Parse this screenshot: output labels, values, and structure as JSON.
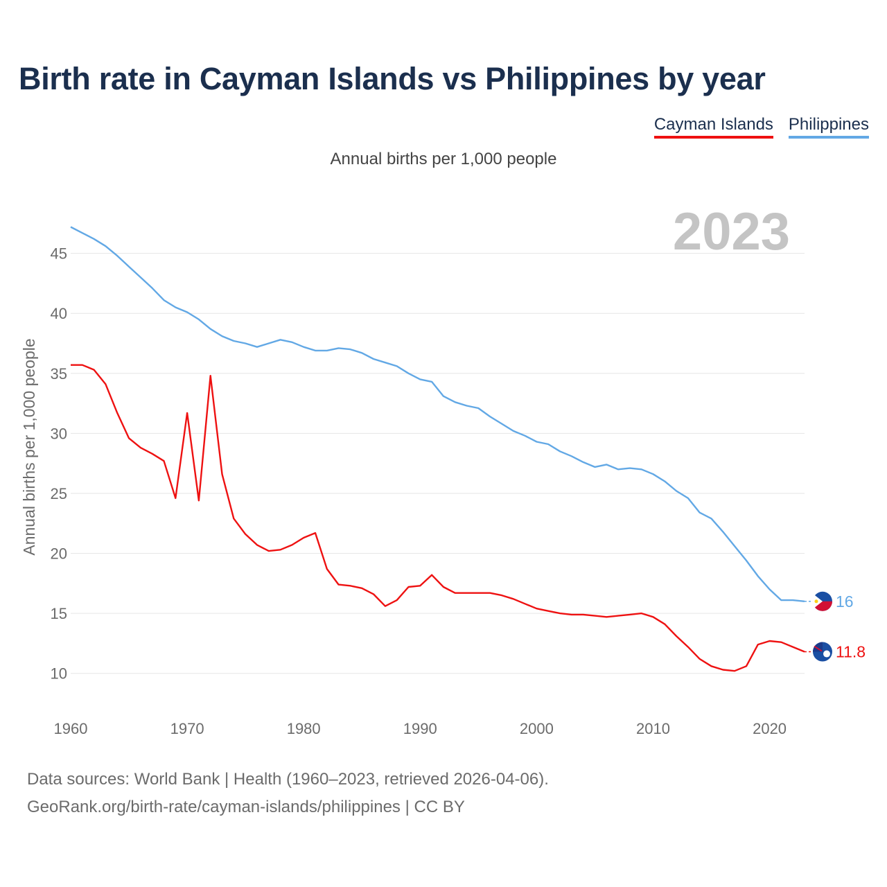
{
  "title": "Birth rate in Cayman Islands vs Philippines by year",
  "subtitle": "Annual births per 1,000 people",
  "legend": [
    {
      "label": "Cayman Islands",
      "color": "#ee1111"
    },
    {
      "label": "Philippines",
      "color": "#62a8e5"
    }
  ],
  "footer": {
    "line1": "Data sources: World Bank | Health (1960–2023, retrieved 2026-04-06).",
    "line2": "GeoRank.org/birth-rate/cayman-islands/philippines | CC BY"
  },
  "chart_data": {
    "type": "line",
    "title": "Birth rate in Cayman Islands vs Philippines by year",
    "xlabel": "",
    "ylabel": "Annual births per 1,000 people",
    "year_label": "2023",
    "xlim": [
      1960,
      2023
    ],
    "ylim": [
      7.5,
      48.5
    ],
    "x_ticks": [
      1960,
      1970,
      1980,
      1990,
      2000,
      2010,
      2020
    ],
    "y_ticks": [
      10,
      15,
      20,
      25,
      30,
      35,
      40,
      45
    ],
    "grid": true,
    "x": [
      1960,
      1961,
      1962,
      1963,
      1964,
      1965,
      1966,
      1967,
      1968,
      1969,
      1970,
      1971,
      1972,
      1973,
      1974,
      1975,
      1976,
      1977,
      1978,
      1979,
      1980,
      1981,
      1982,
      1983,
      1984,
      1985,
      1986,
      1987,
      1988,
      1989,
      1990,
      1991,
      1992,
      1993,
      1994,
      1995,
      1996,
      1997,
      1998,
      1999,
      2000,
      2001,
      2002,
      2003,
      2004,
      2005,
      2006,
      2007,
      2008,
      2009,
      2010,
      2011,
      2012,
      2013,
      2014,
      2015,
      2016,
      2017,
      2018,
      2019,
      2020,
      2021,
      2022,
      2023
    ],
    "series": [
      {
        "name": "Cayman Islands",
        "color": "#ee1111",
        "end_label": "11.8",
        "values": [
          35.7,
          35.7,
          35.3,
          34.1,
          31.7,
          29.6,
          28.8,
          28.3,
          27.7,
          24.6,
          31.7,
          24.4,
          34.8,
          26.6,
          22.9,
          21.6,
          20.7,
          20.2,
          20.3,
          20.7,
          21.3,
          21.7,
          18.7,
          17.4,
          17.3,
          17.1,
          16.6,
          15.6,
          16.1,
          17.2,
          17.3,
          18.2,
          17.2,
          16.7,
          16.7,
          16.7,
          16.7,
          16.5,
          16.2,
          15.8,
          15.4,
          15.2,
          15.0,
          14.9,
          14.9,
          14.8,
          14.7,
          14.8,
          14.9,
          15.0,
          14.7,
          14.1,
          13.1,
          12.2,
          11.2,
          10.6,
          10.3,
          10.2,
          10.6,
          12.4,
          12.7,
          12.6,
          12.2,
          11.8
        ]
      },
      {
        "name": "Philippines",
        "color": "#62a8e5",
        "end_label": "16",
        "values": [
          47.2,
          46.7,
          46.2,
          45.6,
          44.8,
          43.9,
          43.0,
          42.1,
          41.1,
          40.5,
          40.1,
          39.5,
          38.7,
          38.1,
          37.7,
          37.5,
          37.2,
          37.5,
          37.8,
          37.6,
          37.2,
          36.9,
          36.9,
          37.1,
          37.0,
          36.7,
          36.2,
          35.9,
          35.6,
          35.0,
          34.5,
          34.3,
          33.1,
          32.6,
          32.3,
          32.1,
          31.4,
          30.8,
          30.2,
          29.8,
          29.3,
          29.1,
          28.5,
          28.1,
          27.6,
          27.2,
          27.4,
          27.0,
          27.1,
          27.0,
          26.6,
          26.0,
          25.2,
          24.6,
          23.4,
          22.9,
          21.8,
          20.6,
          19.4,
          18.1,
          17.0,
          16.1,
          16.1,
          16.0
        ]
      }
    ]
  }
}
